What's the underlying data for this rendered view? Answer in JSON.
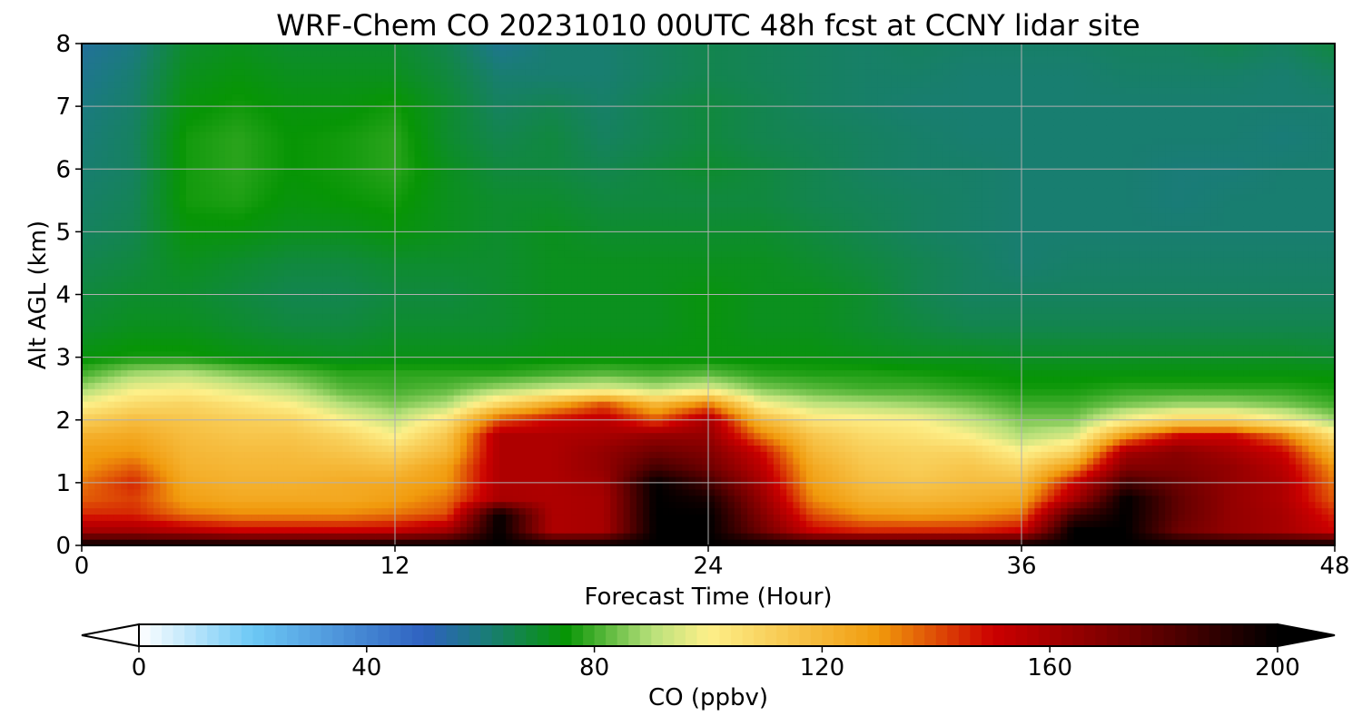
{
  "chart_data": {
    "type": "heatmap",
    "title": "WRF-Chem CO  20231010 00UTC 48h fcst at CCNY lidar site",
    "xlabel": "Forecast Time (Hour)",
    "ylabel": "Alt AGL (km)",
    "xlim": [
      0,
      48
    ],
    "ylim": [
      0,
      8
    ],
    "xticks": [
      0,
      12,
      24,
      36,
      48
    ],
    "yticks": [
      0,
      1,
      2,
      3,
      4,
      5,
      6,
      7,
      8
    ],
    "grid": true,
    "colorbar": {
      "label": "CO  (ppbv)",
      "ticks": [
        0,
        40,
        80,
        120,
        160,
        200
      ],
      "range": [
        0,
        200
      ],
      "extend": "both",
      "stops": [
        {
          "value": 0,
          "color": "#ffffff"
        },
        {
          "value": 20,
          "color": "#6cc8f5"
        },
        {
          "value": 50,
          "color": "#2f62c0"
        },
        {
          "value": 60,
          "color": "#1b7a80"
        },
        {
          "value": 75,
          "color": "#079505"
        },
        {
          "value": 90,
          "color": "#b7e07a"
        },
        {
          "value": 100,
          "color": "#fdf08a"
        },
        {
          "value": 130,
          "color": "#f19a0c"
        },
        {
          "value": 150,
          "color": "#cc0000"
        },
        {
          "value": 175,
          "color": "#6e0000"
        },
        {
          "value": 200,
          "color": "#000000"
        }
      ]
    },
    "x": [
      0,
      2,
      4,
      6,
      8,
      10,
      12,
      14,
      16,
      18,
      20,
      22,
      24,
      26,
      28,
      30,
      32,
      34,
      36,
      38,
      40,
      42,
      44,
      46,
      48
    ],
    "y": [
      0,
      0.25,
      0.5,
      0.75,
      1,
      1.25,
      1.5,
      1.75,
      2,
      2.25,
      2.5,
      2.75,
      3,
      3.5,
      4,
      4.5,
      5,
      5.5,
      6,
      6.5,
      7,
      7.5,
      8
    ],
    "z": [
      [
        200,
        200,
        200,
        200,
        200,
        200,
        200,
        200,
        200,
        200,
        200,
        200,
        200,
        200,
        200,
        200,
        200,
        200,
        200,
        200,
        200,
        200,
        200,
        200,
        200
      ],
      [
        160,
        160,
        155,
        150,
        150,
        150,
        152,
        160,
        200,
        158,
        160,
        200,
        200,
        175,
        150,
        145,
        145,
        145,
        150,
        200,
        200,
        175,
        165,
        160,
        150
      ],
      [
        145,
        145,
        135,
        132,
        132,
        132,
        135,
        140,
        200,
        158,
        160,
        200,
        200,
        170,
        140,
        130,
        128,
        130,
        135,
        185,
        200,
        178,
        165,
        160,
        145
      ],
      [
        138,
        142,
        128,
        125,
        125,
        125,
        128,
        135,
        160,
        158,
        160,
        200,
        195,
        165,
        132,
        122,
        120,
        122,
        125,
        160,
        200,
        178,
        165,
        158,
        138
      ],
      [
        135,
        145,
        125,
        122,
        122,
        124,
        125,
        130,
        158,
        158,
        162,
        200,
        185,
        160,
        128,
        118,
        115,
        118,
        118,
        150,
        185,
        175,
        165,
        158,
        135
      ],
      [
        130,
        138,
        122,
        120,
        120,
        120,
        118,
        128,
        158,
        158,
        165,
        185,
        175,
        155,
        125,
        115,
        112,
        115,
        110,
        130,
        170,
        170,
        165,
        155,
        130
      ],
      [
        128,
        130,
        120,
        118,
        118,
        115,
        110,
        120,
        158,
        158,
        165,
        175,
        170,
        150,
        120,
        112,
        110,
        110,
        100,
        110,
        160,
        168,
        160,
        150,
        120
      ],
      [
        122,
        125,
        118,
        115,
        115,
        110,
        100,
        115,
        158,
        158,
        160,
        165,
        165,
        135,
        115,
        108,
        105,
        100,
        90,
        95,
        130,
        150,
        150,
        135,
        105
      ],
      [
        112,
        118,
        115,
        112,
        110,
        100,
        92,
        105,
        140,
        150,
        155,
        140,
        160,
        120,
        105,
        102,
        100,
        92,
        85,
        85,
        100,
        110,
        110,
        100,
        88
      ],
      [
        100,
        108,
        110,
        105,
        100,
        90,
        85,
        90,
        110,
        125,
        140,
        120,
        135,
        100,
        92,
        90,
        88,
        85,
        80,
        80,
        85,
        88,
        88,
        85,
        80
      ],
      [
        88,
        98,
        100,
        95,
        90,
        82,
        80,
        82,
        88,
        92,
        95,
        90,
        95,
        85,
        82,
        80,
        80,
        78,
        76,
        76,
        78,
        78,
        78,
        78,
        76
      ],
      [
        80,
        88,
        90,
        85,
        82,
        78,
        78,
        78,
        78,
        80,
        82,
        80,
        82,
        78,
        77,
        77,
        76,
        75,
        74,
        74,
        74,
        74,
        74,
        74,
        74
      ],
      [
        74,
        76,
        76,
        74,
        73,
        72,
        73,
        73,
        73,
        74,
        74,
        74,
        74,
        74,
        74,
        73,
        72,
        72,
        71,
        71,
        71,
        71,
        71,
        71,
        70
      ],
      [
        70,
        72,
        72,
        70,
        68,
        68,
        70,
        70,
        70,
        72,
        72,
        72,
        74,
        72,
        72,
        70,
        68,
        66,
        66,
        66,
        66,
        66,
        66,
        66,
        66
      ],
      [
        68,
        70,
        70,
        68,
        66,
        66,
        68,
        68,
        70,
        72,
        72,
        72,
        74,
        72,
        72,
        70,
        66,
        64,
        64,
        64,
        64,
        64,
        64,
        64,
        64
      ],
      [
        66,
        68,
        72,
        70,
        68,
        68,
        70,
        70,
        70,
        72,
        72,
        72,
        72,
        72,
        70,
        68,
        66,
        64,
        62,
        63,
        63,
        63,
        63,
        63,
        63
      ],
      [
        64,
        66,
        74,
        74,
        72,
        72,
        74,
        72,
        70,
        72,
        70,
        70,
        70,
        70,
        68,
        66,
        64,
        63,
        62,
        62,
        62,
        62,
        62,
        62,
        62
      ],
      [
        63,
        65,
        76,
        77,
        74,
        75,
        76,
        72,
        70,
        70,
        68,
        68,
        68,
        68,
        66,
        65,
        64,
        63,
        62,
        62,
        62,
        61,
        62,
        62,
        62
      ],
      [
        62,
        64,
        76,
        78,
        75,
        76,
        78,
        72,
        68,
        68,
        66,
        68,
        70,
        68,
        66,
        64,
        63,
        63,
        62,
        62,
        62,
        61,
        61,
        62,
        62
      ],
      [
        61,
        64,
        76,
        78,
        75,
        76,
        78,
        70,
        66,
        68,
        64,
        66,
        68,
        66,
        65,
        64,
        63,
        62,
        62,
        62,
        62,
        62,
        62,
        61,
        62
      ],
      [
        60,
        63,
        74,
        76,
        74,
        74,
        76,
        70,
        64,
        66,
        63,
        66,
        68,
        66,
        64,
        63,
        62,
        62,
        62,
        62,
        62,
        62,
        62,
        62,
        62
      ],
      [
        58,
        62,
        72,
        74,
        72,
        72,
        72,
        68,
        62,
        62,
        62,
        64,
        66,
        65,
        64,
        63,
        63,
        62,
        62,
        62,
        63,
        63,
        63,
        62,
        64
      ],
      [
        56,
        60,
        70,
        72,
        70,
        70,
        70,
        66,
        58,
        62,
        62,
        64,
        66,
        65,
        64,
        63,
        64,
        63,
        63,
        63,
        64,
        64,
        66,
        64,
        68
      ]
    ]
  }
}
